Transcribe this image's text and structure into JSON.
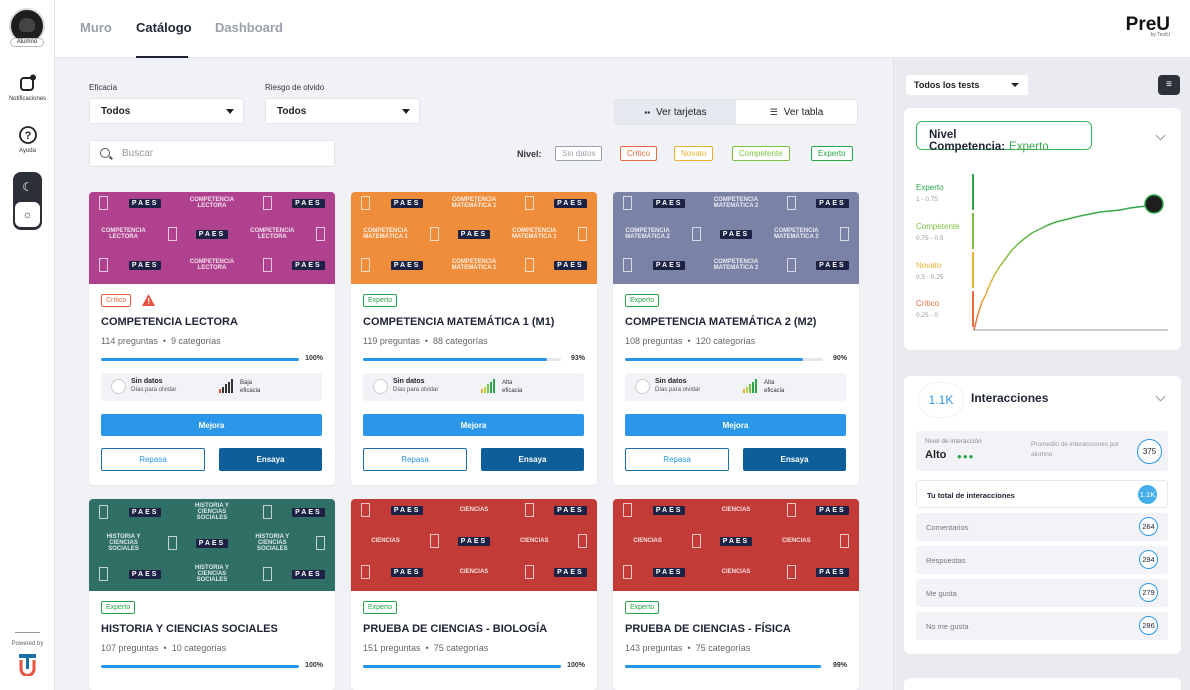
{
  "rail": {
    "avatar_label": "Alumno",
    "notificaciones": "Notificaciones",
    "ayuda": "Ayuda",
    "powered_by": "Powered by"
  },
  "nav": {
    "tabs": [
      "Muro",
      "Catálogo",
      "Dashboard"
    ],
    "active": "Catálogo"
  },
  "brand": {
    "name": "PreU",
    "sub": "by TestU"
  },
  "filters": {
    "eficacia_label": "Eficacia",
    "eficacia_value": "Todos",
    "riesgo_label": "Riesgo de olvido",
    "riesgo_value": "Todos",
    "ver_tarjetas": "Ver tarjetas",
    "ver_tabla": "Ver tabla",
    "search_placeholder": "Buscar",
    "nivel_label": "Nivel:",
    "levels": [
      {
        "label": "Sin datos",
        "color": "#9aa0aa"
      },
      {
        "label": "Crítico",
        "color": "#e8683f"
      },
      {
        "label": "Novato",
        "color": "#e9b233"
      },
      {
        "label": "Competente",
        "color": "#7cc143"
      },
      {
        "label": "Experto",
        "color": "#2aa54a"
      }
    ]
  },
  "cards": [
    {
      "title": "COMPETENCIA LECTORA",
      "badge": "Crítico",
      "badge_color": "#e8683f",
      "warning": true,
      "preguntas": "114 preguntas",
      "categorias": "9 categorías",
      "progress": 100,
      "progress_label": "100%",
      "sin_datos": "Sin datos",
      "dias": "Días para olvidar",
      "eficacia_1": "Baja",
      "eficacia_2": "eficacia",
      "bars": "low",
      "color": "#b0418f",
      "banner_text": "COMPETENCIA LECTORA",
      "mejora": "Mejora",
      "repasa": "Repasa",
      "ensaya": "Ensaya"
    },
    {
      "title": "COMPETENCIA MATEMÁTICA 1 (M1)",
      "badge": "Experto",
      "badge_color": "#2aa54a",
      "warning": false,
      "preguntas": "119 preguntas",
      "categorias": "88 categorías",
      "progress": 93,
      "progress_label": "93%",
      "sin_datos": "Sin datos",
      "dias": "Días para olvidar",
      "eficacia_1": "Alta",
      "eficacia_2": "eficacia",
      "bars": "high",
      "color": "#ef8d3b",
      "banner_text": "COMPETENCIA MATEMÁTICA 1",
      "mejora": "Mejora",
      "repasa": "Repasa",
      "ensaya": "Ensaya"
    },
    {
      "title": "COMPETENCIA MATEMÁTICA 2 (M2)",
      "badge": "Experto",
      "badge_color": "#2aa54a",
      "warning": false,
      "preguntas": "108 preguntas",
      "categorias": "120 categorías",
      "progress": 90,
      "progress_label": "90%",
      "sin_datos": "Sin datos",
      "dias": "Días para olvidar",
      "eficacia_1": "Alta",
      "eficacia_2": "eficacia",
      "bars": "high",
      "color": "#7a82a6",
      "banner_text": "COMPETENCIA MATEMÁTICA 2",
      "mejora": "Mejora",
      "repasa": "Repasa",
      "ensaya": "Ensaya"
    },
    {
      "title": "HISTORIA Y CIENCIAS SOCIALES",
      "badge": "Experto",
      "badge_color": "#2aa54a",
      "warning": false,
      "preguntas": "107 preguntas",
      "categorias": "10 categorías",
      "progress": 100,
      "progress_label": "100%",
      "color": "#2f6f66",
      "banner_text": "HISTORIA Y CIENCIAS SOCIALES"
    },
    {
      "title": "PRUEBA DE CIENCIAS - BIOLOGÍA",
      "badge": "Experto",
      "badge_color": "#2aa54a",
      "warning": false,
      "preguntas": "151 preguntas",
      "categorias": "75 categorías",
      "progress": 100,
      "progress_label": "100%",
      "color": "#c33b36",
      "banner_text": "CIENCIAS"
    },
    {
      "title": "PRUEBA DE CIENCIAS - FÍSICA",
      "badge": "Experto",
      "badge_color": "#2aa54a",
      "warning": false,
      "preguntas": "143 preguntas",
      "categorias": "75 categorías",
      "progress": 99,
      "progress_label": "99%",
      "color": "#c33b36",
      "banner_text": "CIENCIAS"
    }
  ],
  "banner_paes": "PAES",
  "right_panel": {
    "tests_select": "Todos los tests",
    "competencia_label": "Nivel Competencia:",
    "competencia_value": "Experto",
    "levels": [
      {
        "name": "Experto",
        "range": "1 - 0.75",
        "color": "#2aa54a"
      },
      {
        "name": "Competente",
        "range": "0.75 - 0.5",
        "color": "#7cc143"
      },
      {
        "name": "Novato",
        "range": "0.5 - 0.25",
        "color": "#e9b233"
      },
      {
        "name": "Crítico",
        "range": "0.25 - 0",
        "color": "#e8683f"
      }
    ],
    "interacciones_bubble": "1.1K",
    "interacciones_title": "Interacciones",
    "nivel_interaccion_label": "Nivel de interacción",
    "nivel_interaccion_value": "Alto",
    "promedio_label": "Promedio de interacciones por alumno",
    "promedio_value": "375",
    "rows": [
      {
        "label": "Tu total de interacciones",
        "value": "1.1K",
        "active": true
      },
      {
        "label": "Comentarios",
        "value": "264"
      },
      {
        "label": "Respuestas",
        "value": "294"
      },
      {
        "label": "Me gusta",
        "value": "279"
      },
      {
        "label": "No me gusta",
        "value": "286"
      }
    ]
  }
}
